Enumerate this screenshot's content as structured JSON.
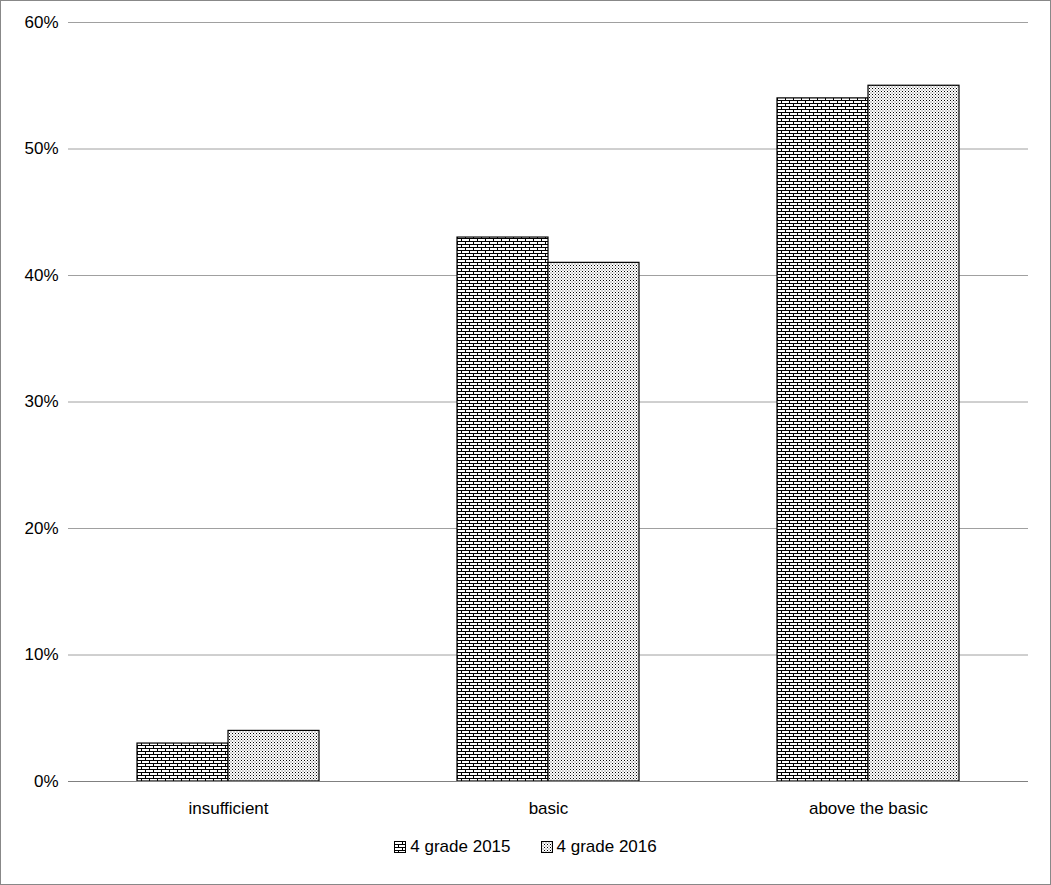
{
  "chart_data": {
    "type": "bar",
    "categories": [
      "insufficient",
      "basic",
      "above the basic"
    ],
    "series": [
      {
        "name": "4 grade 2015",
        "values": [
          3,
          43,
          54
        ]
      },
      {
        "name": "4 grade 2016",
        "values": [
          4,
          41,
          55
        ]
      }
    ],
    "ylim": [
      0,
      60
    ],
    "yticks": [
      {
        "value": 0,
        "label": "0%"
      },
      {
        "value": 10,
        "label": "10%"
      },
      {
        "value": 20,
        "label": "20%"
      },
      {
        "value": 30,
        "label": "30%"
      },
      {
        "value": 40,
        "label": "40%"
      },
      {
        "value": 50,
        "label": "50%"
      },
      {
        "value": 60,
        "label": "60%"
      }
    ],
    "grid": true,
    "legend": "bottom"
  }
}
